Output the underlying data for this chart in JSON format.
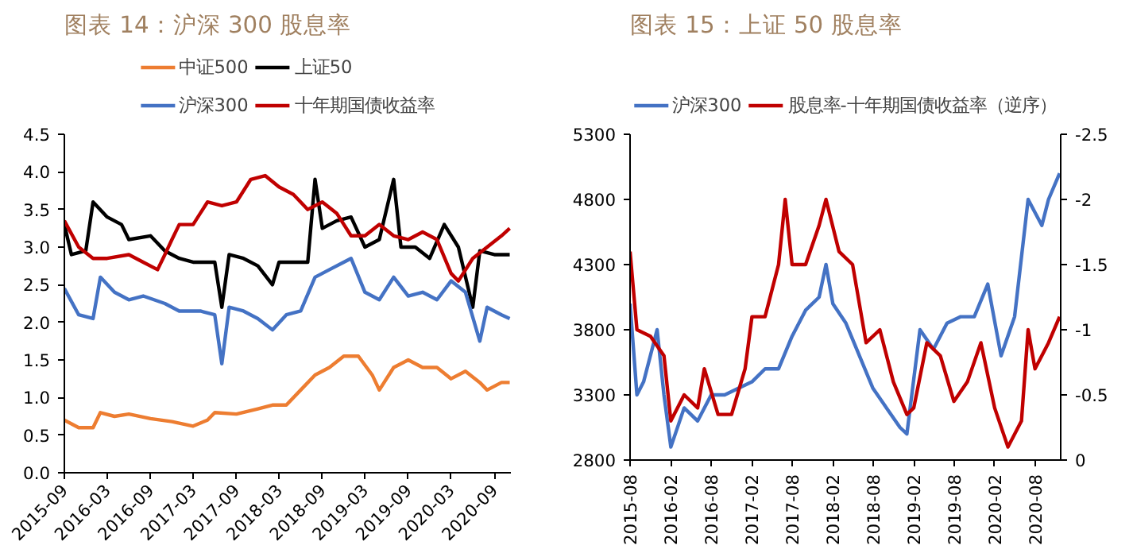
{
  "chart_data": [
    {
      "type": "line",
      "title": "图表 14：沪深 300 股息率",
      "legend": "top",
      "grid": false,
      "marker": "none",
      "line_style": "solid",
      "xlim": [
        "2015-09",
        "2020-11-10"
      ],
      "ylim": [
        0,
        4.5
      ],
      "xticks": [
        "2015-09",
        "2016-03",
        "2016-09",
        "2017-03",
        "2017-09",
        "2018-03",
        "2018-09",
        "2019-03",
        "2019-09",
        "2020-03",
        "2020-09"
      ],
      "yticks": [
        {
          "value": 0,
          "label": "0.0"
        },
        0.5,
        {
          "value": 1,
          "label": "1.0"
        },
        1.5,
        {
          "value": 2,
          "label": "2.0"
        },
        2.5,
        {
          "value": 3,
          "label": "3.0"
        },
        3.5,
        {
          "value": 4,
          "label": "4.0"
        },
        4.5
      ],
      "series": [
        {
          "name": "中证500",
          "color": "#ed7d31",
          "x": [
            "2015-09",
            "2015-11",
            "2016-01",
            "2016-02",
            "2016-04",
            "2016-06",
            "2016-09",
            "2016-12",
            "2017-03",
            "2017-05",
            "2017-06",
            "2017-09",
            "2017-12",
            "2018-02",
            "2018-04",
            "2018-06",
            "2018-08",
            "2018-10",
            "2018-12",
            "2019-02",
            "2019-04",
            "2019-05",
            "2019-07",
            "2019-09",
            "2019-11",
            "2020-01",
            "2020-03",
            "2020-05",
            "2020-07",
            "2020-08",
            "2020-10",
            "2020-11-05"
          ],
          "values": [
            0.7,
            0.6,
            0.6,
            0.8,
            0.75,
            0.78,
            0.72,
            0.68,
            0.62,
            0.7,
            0.8,
            0.78,
            0.85,
            0.9,
            0.9,
            1.1,
            1.3,
            1.4,
            1.55,
            1.55,
            1.3,
            1.1,
            1.4,
            1.5,
            1.4,
            1.4,
            1.25,
            1.35,
            1.2,
            1.1,
            1.2,
            1.2
          ]
        },
        {
          "name": "上证50",
          "color": "#000000",
          "x": [
            "2015-09",
            "2015-10",
            "2015-12",
            "2016-01",
            "2016-03",
            "2016-05",
            "2016-06",
            "2016-09",
            "2016-11",
            "2017-01",
            "2017-03",
            "2017-05",
            "2017-06",
            "2017-07",
            "2017-08",
            "2017-10",
            "2017-12",
            "2018-02",
            "2018-03",
            "2018-05",
            "2018-07",
            "2018-08",
            "2018-09",
            "2018-11",
            "2019-01",
            "2019-03",
            "2019-05",
            "2019-07",
            "2019-08",
            "2019-10",
            "2019-12",
            "2020-02",
            "2020-04",
            "2020-06",
            "2020-07",
            "2020-09",
            "2020-11-05"
          ],
          "values": [
            3.3,
            2.9,
            2.95,
            3.6,
            3.4,
            3.3,
            3.1,
            3.15,
            2.95,
            2.85,
            2.8,
            2.8,
            2.8,
            2.2,
            2.9,
            2.85,
            2.75,
            2.5,
            2.8,
            2.8,
            2.8,
            3.9,
            3.25,
            3.35,
            3.4,
            3.0,
            3.1,
            3.9,
            3.0,
            3.0,
            2.85,
            3.3,
            3.0,
            2.2,
            2.95,
            2.9,
            2.9
          ]
        },
        {
          "name": "沪深300",
          "color": "#4472c4",
          "x": [
            "2015-09",
            "2015-11",
            "2016-01",
            "2016-02",
            "2016-04",
            "2016-06",
            "2016-08",
            "2016-11",
            "2017-01",
            "2017-04",
            "2017-06",
            "2017-07",
            "2017-08",
            "2017-10",
            "2017-12",
            "2018-02",
            "2018-04",
            "2018-06",
            "2018-08",
            "2018-10",
            "2018-12",
            "2019-01",
            "2019-03",
            "2019-05",
            "2019-07",
            "2019-09",
            "2019-11",
            "2020-01",
            "2020-03",
            "2020-05",
            "2020-07",
            "2020-08",
            "2020-10",
            "2020-11-05"
          ],
          "values": [
            2.45,
            2.1,
            2.05,
            2.6,
            2.4,
            2.3,
            2.35,
            2.25,
            2.15,
            2.15,
            2.1,
            1.45,
            2.2,
            2.15,
            2.05,
            1.9,
            2.1,
            2.15,
            2.6,
            2.7,
            2.8,
            2.85,
            2.4,
            2.3,
            2.6,
            2.35,
            2.4,
            2.3,
            2.55,
            2.4,
            1.75,
            2.2,
            2.1,
            2.05
          ]
        },
        {
          "name": "十年期国债收益率",
          "color": "#c00000",
          "x": [
            "2015-09",
            "2015-11",
            "2016-01",
            "2016-03",
            "2016-06",
            "2016-08",
            "2016-10",
            "2016-11",
            "2016-12",
            "2017-01",
            "2017-03",
            "2017-05",
            "2017-07",
            "2017-09",
            "2017-11",
            "2018-01",
            "2018-03",
            "2018-05",
            "2018-07",
            "2018-09",
            "2018-11",
            "2019-01",
            "2019-03",
            "2019-05",
            "2019-07",
            "2019-09",
            "2019-11",
            "2020-01",
            "2020-03",
            "2020-04",
            "2020-06",
            "2020-08",
            "2020-10",
            "2020-11-05"
          ],
          "values": [
            3.35,
            3.0,
            2.85,
            2.85,
            2.9,
            2.8,
            2.7,
            2.9,
            3.1,
            3.3,
            3.3,
            3.6,
            3.55,
            3.6,
            3.9,
            3.95,
            3.8,
            3.7,
            3.5,
            3.6,
            3.45,
            3.15,
            3.15,
            3.3,
            3.15,
            3.1,
            3.2,
            3.1,
            2.65,
            2.55,
            2.85,
            3.0,
            3.15,
            3.25
          ]
        }
      ]
    },
    {
      "type": "line",
      "title": "图表 15：上证 50 股息率",
      "legend": "top",
      "grid": false,
      "marker": "none",
      "line_style": "solid",
      "xlim": [
        "2015-08",
        "2020-11-25"
      ],
      "ylim": [
        2800,
        5300
      ],
      "y2lim": [
        0,
        -2.5
      ],
      "xticks": [
        "2015-08",
        "2016-02",
        "2016-08",
        "2017-02",
        "2017-08",
        "2018-02",
        "2018-08",
        "2019-02",
        "2019-08",
        "2020-02",
        "2020-08"
      ],
      "yticks": [
        2800,
        3300,
        3800,
        4300,
        4800,
        5300
      ],
      "y2ticks": [
        0,
        -0.5,
        -1,
        -1.5,
        -2,
        -2.5
      ],
      "series": [
        {
          "name": "沪深300",
          "color": "#4472c4",
          "x": [
            "2015-08",
            "2015-09",
            "2015-10",
            "2015-12",
            "2016-01",
            "2016-02",
            "2016-04",
            "2016-06",
            "2016-08",
            "2016-10",
            "2016-12",
            "2017-02",
            "2017-04",
            "2017-06",
            "2017-08",
            "2017-10",
            "2017-12",
            "2018-01",
            "2018-02",
            "2018-04",
            "2018-06",
            "2018-08",
            "2018-10",
            "2018-12",
            "2019-01",
            "2019-03",
            "2019-05",
            "2019-07",
            "2019-09",
            "2019-11",
            "2020-01",
            "2020-03",
            "2020-05",
            "2020-07",
            "2020-09",
            "2020-10",
            "2020-11-20"
          ],
          "values": [
            4000,
            3300,
            3400,
            3800,
            3300,
            2900,
            3200,
            3100,
            3300,
            3300,
            3350,
            3400,
            3500,
            3500,
            3750,
            3950,
            4050,
            4300,
            4000,
            3850,
            3600,
            3350,
            3200,
            3050,
            3000,
            3800,
            3650,
            3850,
            3900,
            3900,
            4150,
            3600,
            3900,
            4800,
            4600,
            4800,
            5000
          ]
        },
        {
          "name": "股息率-十年期国债收益率（逆序）",
          "color": "#c00000",
          "axis": "y2",
          "x": [
            "2015-08",
            "2015-09",
            "2015-11",
            "2016-01",
            "2016-02",
            "2016-04",
            "2016-06",
            "2016-07",
            "2016-09",
            "2016-11",
            "2017-01",
            "2017-02",
            "2017-04",
            "2017-06",
            "2017-07",
            "2017-08",
            "2017-10",
            "2017-12",
            "2018-01",
            "2018-03",
            "2018-05",
            "2018-07",
            "2018-09",
            "2018-11",
            "2019-01",
            "2019-02",
            "2019-04",
            "2019-06",
            "2019-08",
            "2019-10",
            "2019-12",
            "2020-02",
            "2020-04",
            "2020-06",
            "2020-07",
            "2020-08",
            "2020-10",
            "2020-11-20"
          ],
          "values": [
            -1.6,
            -1.0,
            -0.95,
            -0.8,
            -0.3,
            -0.5,
            -0.4,
            -0.7,
            -0.35,
            -0.35,
            -0.7,
            -1.1,
            -1.1,
            -1.5,
            -2.0,
            -1.5,
            -1.5,
            -1.8,
            -2.0,
            -1.6,
            -1.5,
            -0.9,
            -1.0,
            -0.6,
            -0.35,
            -0.4,
            -0.9,
            -0.8,
            -0.45,
            -0.6,
            -0.9,
            -0.4,
            -0.1,
            -0.3,
            -1.0,
            -0.7,
            -0.9,
            -1.1
          ]
        }
      ]
    }
  ]
}
